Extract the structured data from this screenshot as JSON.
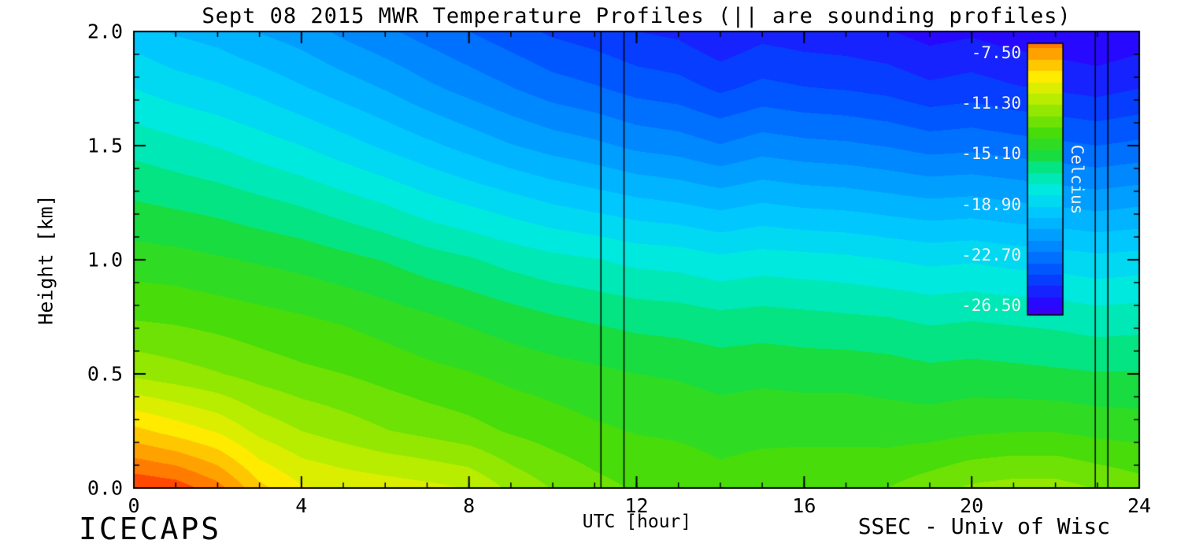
{
  "figure": {
    "title": "Sept 08 2015 MWR Temperature Profiles (|| are sounding profiles)",
    "footer_left": "ICECAPS",
    "footer_right": "SSEC - Univ of Wisc"
  },
  "chart_data": {
    "type": "heatmap",
    "title": "Sept 08 2015 MWR Temperature Profiles (|| are sounding profiles)",
    "xlabel": "UTC [hour]",
    "ylabel": "Height [km]",
    "xlim": [
      0,
      24
    ],
    "ylim": [
      0.0,
      2.0
    ],
    "x_hours": [
      0,
      1,
      2,
      3,
      4,
      5,
      6,
      7,
      8,
      9,
      10,
      11,
      12,
      13,
      14,
      15,
      16,
      17,
      18,
      19,
      20,
      21,
      22,
      23,
      24
    ],
    "heights_km": [
      0.0,
      0.25,
      0.5,
      0.75,
      1.0,
      1.25,
      1.5,
      1.75,
      2.0
    ],
    "temperature_c": [
      [
        -5.5,
        -5.8,
        -6.8,
        -8.6,
        -9.6,
        -9.9,
        -10.1,
        -10.3,
        -10.6,
        -11.6,
        -12.3,
        -12.8,
        -13.2,
        -13.3,
        -13.6,
        -13.4,
        -13.3,
        -13.3,
        -13.1,
        -12.6,
        -12.1,
        -11.9,
        -11.9,
        -12.3,
        -12.7
      ],
      [
        -8.6,
        -9.2,
        -9.8,
        -10.8,
        -11.4,
        -11.8,
        -12.2,
        -12.5,
        -12.8,
        -13.2,
        -13.5,
        -13.8,
        -14.0,
        -14.1,
        -14.3,
        -14.2,
        -14.2,
        -14.2,
        -14.3,
        -14.3,
        -14.1,
        -14.0,
        -14.0,
        -14.2,
        -14.3
      ],
      [
        -11.6,
        -11.9,
        -12.2,
        -12.6,
        -12.9,
        -13.1,
        -13.4,
        -13.7,
        -13.9,
        -14.2,
        -14.4,
        -14.6,
        -14.8,
        -14.9,
        -15.1,
        -15.0,
        -15.1,
        -15.1,
        -15.2,
        -15.4,
        -15.3,
        -15.4,
        -15.5,
        -15.6,
        -15.6
      ],
      [
        -13.2,
        -13.3,
        -13.5,
        -13.7,
        -13.9,
        -14.1,
        -14.4,
        -14.7,
        -15.0,
        -15.3,
        -15.6,
        -15.8,
        -16.0,
        -16.1,
        -16.3,
        -16.2,
        -16.3,
        -16.4,
        -16.5,
        -16.7,
        -16.6,
        -16.7,
        -16.8,
        -17.0,
        -16.9
      ],
      [
        -14.4,
        -14.5,
        -14.7,
        -14.9,
        -15.1,
        -15.4,
        -15.7,
        -16.1,
        -16.4,
        -16.8,
        -17.1,
        -17.3,
        -17.6,
        -17.7,
        -18.0,
        -17.8,
        -17.9,
        -18.0,
        -18.2,
        -18.4,
        -18.3,
        -18.5,
        -18.6,
        -18.8,
        -18.7
      ],
      [
        -15.6,
        -15.8,
        -16.0,
        -16.3,
        -16.6,
        -17.0,
        -17.4,
        -17.9,
        -18.3,
        -18.7,
        -19.1,
        -19.4,
        -19.7,
        -19.9,
        -20.2,
        -19.9,
        -20.1,
        -20.2,
        -20.4,
        -20.6,
        -20.5,
        -20.7,
        -20.9,
        -21.1,
        -20.9
      ],
      [
        -16.8,
        -17.1,
        -17.4,
        -17.8,
        -18.2,
        -18.7,
        -19.2,
        -19.7,
        -20.2,
        -20.7,
        -21.1,
        -21.4,
        -21.8,
        -22.0,
        -22.4,
        -22.0,
        -22.2,
        -22.3,
        -22.5,
        -22.8,
        -22.7,
        -22.9,
        -23.1,
        -23.3,
        -23.1
      ],
      [
        -18.2,
        -18.6,
        -18.9,
        -19.3,
        -19.8,
        -20.3,
        -20.8,
        -21.4,
        -21.9,
        -22.4,
        -22.9,
        -23.2,
        -23.6,
        -23.8,
        -24.3,
        -23.9,
        -24.1,
        -24.2,
        -24.4,
        -24.8,
        -24.6,
        -24.9,
        -25.1,
        -25.3,
        -25.0
      ],
      [
        -19.5,
        -20.0,
        -20.3,
        -20.8,
        -21.2,
        -21.8,
        -22.3,
        -22.8,
        -23.3,
        -23.8,
        -24.3,
        -24.6,
        -25.0,
        -25.2,
        -25.8,
        -25.3,
        -25.5,
        -25.6,
        -25.8,
        -26.2,
        -26.0,
        -26.3,
        -26.5,
        -26.7,
        -26.4
      ]
    ],
    "x_ticks": {
      "major": [
        0,
        4,
        8,
        12,
        16,
        20,
        24
      ],
      "labels": [
        "0",
        "4",
        "8",
        "12",
        "16",
        "20",
        "24"
      ],
      "minor_step": 1
    },
    "y_ticks": {
      "major": [
        0.0,
        0.5,
        1.0,
        1.5,
        2.0
      ],
      "labels": [
        "0.0",
        "0.5",
        "1.0",
        "1.5",
        "2.0"
      ],
      "minor_step": 0.1
    },
    "sounding_profile_hours": [
      11.15,
      11.7,
      22.95,
      23.25
    ],
    "colorbar": {
      "label": "Celcius",
      "tick_labels": [
        "-7.50",
        "-11.30",
        "-15.10",
        "-18.90",
        "-22.70",
        "-26.50"
      ],
      "tick_values": [
        -7.5,
        -11.3,
        -15.1,
        -18.9,
        -22.7,
        -26.5
      ],
      "range_top": -6.8,
      "range_bottom": -27.2,
      "contour_interval": 0.85,
      "color_range": [
        -28.4,
        -5.6
      ],
      "colormap_stops": [
        [
          0.0,
          90,
          0,
          220
        ],
        [
          0.08,
          45,
          0,
          255
        ],
        [
          0.18,
          0,
          70,
          255
        ],
        [
          0.3,
          0,
          150,
          255
        ],
        [
          0.4,
          0,
          205,
          255
        ],
        [
          0.47,
          0,
          235,
          220
        ],
        [
          0.53,
          0,
          230,
          150
        ],
        [
          0.58,
          25,
          220,
          60
        ],
        [
          0.65,
          70,
          220,
          10
        ],
        [
          0.72,
          140,
          230,
          0
        ],
        [
          0.78,
          200,
          240,
          0
        ],
        [
          0.84,
          255,
          235,
          0
        ],
        [
          0.9,
          255,
          175,
          0
        ],
        [
          0.96,
          255,
          115,
          0
        ],
        [
          1.0,
          255,
          55,
          0
        ]
      ]
    }
  }
}
